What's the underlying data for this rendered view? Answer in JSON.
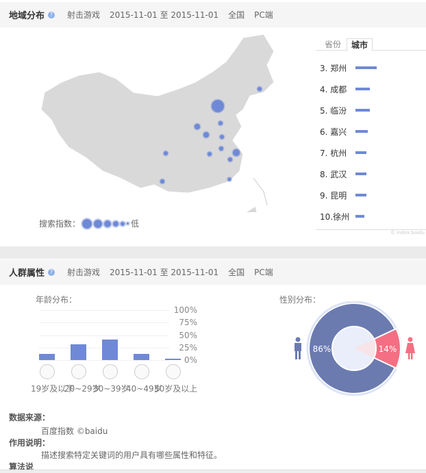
{
  "region": {
    "title": "地域分布",
    "help_icon": "question-icon",
    "keyword": "射击游戏",
    "date_range": "2015-11-01 至 2015-11-01",
    "area": "全国",
    "device": "PC端",
    "tabs": [
      "省份",
      "城市"
    ],
    "active_tab": "城市",
    "ranking": [
      {
        "label": "3. 郑州",
        "value": 92
      },
      {
        "label": "4. 成都",
        "value": 62
      },
      {
        "label": "5. 临汾",
        "value": 62
      },
      {
        "label": "6. 嘉兴",
        "value": 54
      },
      {
        "label": "7. 杭州",
        "value": 48
      },
      {
        "label": "8. 武汉",
        "value": 48
      },
      {
        "label": "9. 昆明",
        "value": 48
      },
      {
        "label": "10.徐州",
        "value": 38
      }
    ],
    "legend_label": "搜索指数：",
    "legend_low": "低",
    "watermark": "© index.baidu"
  },
  "crowd": {
    "title": "人群属性",
    "help_icon": "question-icon",
    "keyword": "射击游戏",
    "date_range": "2015-11-01 至 2015-11-01",
    "area": "全国",
    "device": "PC端",
    "age_title": "年龄分布：",
    "gender_title": "性别分布：",
    "gender": {
      "male": "86%",
      "female": "14%",
      "male_value": 86,
      "female_value": 14,
      "male_color": "#6b7bb0",
      "female_color": "#f46f83"
    }
  },
  "chart_data": {
    "type": "bar",
    "categories": [
      "19岁及以下",
      "20~29岁",
      "30~39岁",
      "40~49岁",
      "50岁及以上"
    ],
    "values": [
      12,
      31,
      41,
      13,
      3
    ],
    "yticks": [
      "100%",
      "75%",
      "50%",
      "25%",
      "0%"
    ],
    "ylim": [
      0,
      100
    ],
    "color": "#6f89d6"
  },
  "footer": {
    "source_label": "数据来源：",
    "source_value": "百度指数 ©baidu",
    "usage_label": "作用说明：",
    "usage_value": "描述搜索特定关键词的用户具有哪些属性和特征。",
    "algo_label": "算法说"
  }
}
